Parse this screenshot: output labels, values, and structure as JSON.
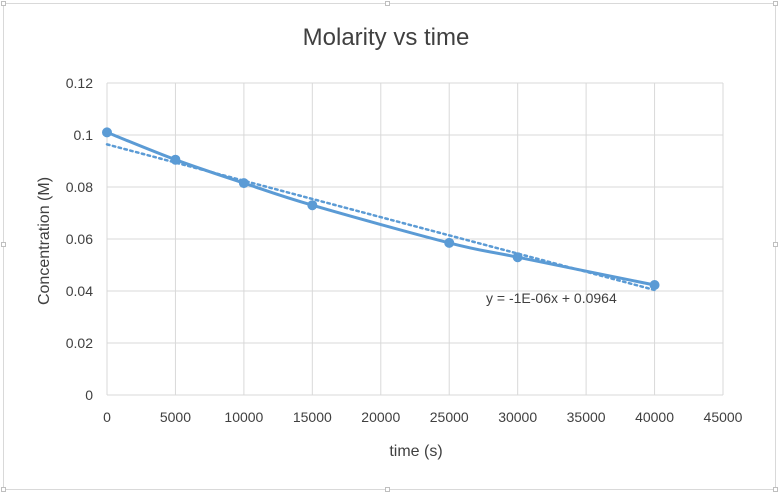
{
  "chart_data": {
    "type": "scatter",
    "title": "Molarity vs time",
    "xlabel": "time (s)",
    "ylabel": "Concentration (M)",
    "xlim": [
      0,
      45000
    ],
    "ylim": [
      0,
      0.12
    ],
    "x_ticks": [
      "0",
      "5000",
      "10000",
      "15000",
      "20000",
      "25000",
      "30000",
      "35000",
      "40000",
      "45000"
    ],
    "y_ticks": [
      "0",
      "0.02",
      "0.04",
      "0.06",
      "0.08",
      "0.1",
      "0.12"
    ],
    "grid": true,
    "series": [
      {
        "name": "Concentration",
        "color": "#5b9bd5",
        "x": [
          0,
          5000,
          10000,
          15000,
          25000,
          30000,
          40000
        ],
        "y": [
          0.101,
          0.0905,
          0.0815,
          0.073,
          0.0585,
          0.053,
          0.0423
        ]
      }
    ],
    "trendline": {
      "type": "linear",
      "style": "dotted",
      "color": "#5b9bd5",
      "slope": -1.4e-06,
      "intercept": 0.0964,
      "x_range": [
        0,
        40000
      ],
      "equation": "y = -1E-06x + 0.0964"
    }
  }
}
